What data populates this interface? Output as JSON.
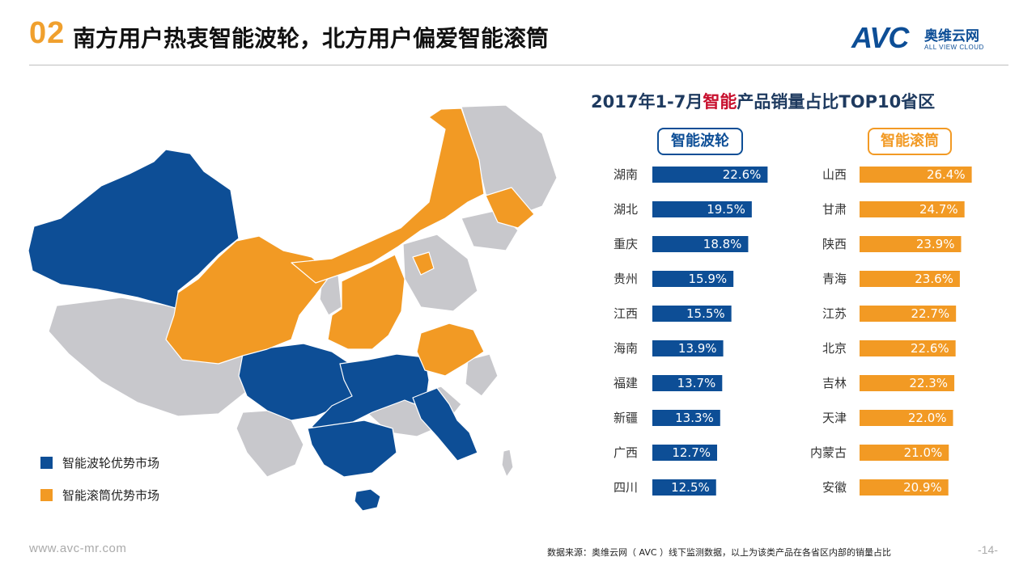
{
  "header": {
    "section_number": "02",
    "title": "南方用户热衷智能波轮，北方用户偏爱智能滚筒"
  },
  "logo": {
    "brand": "AVC",
    "name_cn": "奥维云网",
    "name_en": "ALL VIEW CLOUD"
  },
  "legend": {
    "items": [
      {
        "label": "智能波轮优势市场",
        "color": "#0d4e96"
      },
      {
        "label": "智能滚筒优势市场",
        "color": "#f29a24"
      }
    ]
  },
  "chart_header": {
    "title_pre": "2017年1-7月",
    "title_highlight": "智能",
    "title_post": "产品销量占比TOP10省区",
    "col1": "智能波轮",
    "col2": "智能滚筒"
  },
  "chart_data": [
    {
      "type": "bar",
      "orientation": "horizontal",
      "title": "智能波轮",
      "color": "#0d4e96",
      "categories": [
        "湖南",
        "湖北",
        "重庆",
        "贵州",
        "江西",
        "海南",
        "福建",
        "新疆",
        "广西",
        "四川"
      ],
      "values": [
        22.6,
        19.5,
        18.8,
        15.9,
        15.5,
        13.9,
        13.7,
        13.3,
        12.7,
        12.5
      ],
      "labels": [
        "22.6%",
        "19.5%",
        "18.8%",
        "15.9%",
        "15.5%",
        "13.9%",
        "13.7%",
        "13.3%",
        "12.7%",
        "12.5%"
      ],
      "unit": "%"
    },
    {
      "type": "bar",
      "orientation": "horizontal",
      "title": "智能滚筒",
      "color": "#f29a24",
      "categories": [
        "山西",
        "甘肃",
        "陕西",
        "青海",
        "江苏",
        "北京",
        "吉林",
        "天津",
        "内蒙古",
        "安徽"
      ],
      "values": [
        26.4,
        24.7,
        23.9,
        23.6,
        22.7,
        22.6,
        22.3,
        22.0,
        21.0,
        20.9
      ],
      "labels": [
        "26.4%",
        "24.7%",
        "23.9%",
        "23.6%",
        "22.7%",
        "22.6%",
        "22.3%",
        "22.0%",
        "21.0%",
        "20.9%"
      ],
      "unit": "%"
    }
  ],
  "map_colors": {
    "blue": "#0d4e96",
    "orange": "#f29a24",
    "gray": "#c8c8cc"
  },
  "footer": {
    "url": "www.avc-mr.com",
    "source": "数据来源：奥维云网（ AVC ）线下监测数据，以上为该类产品在各省区内部的销量占比",
    "page": "-14-"
  }
}
